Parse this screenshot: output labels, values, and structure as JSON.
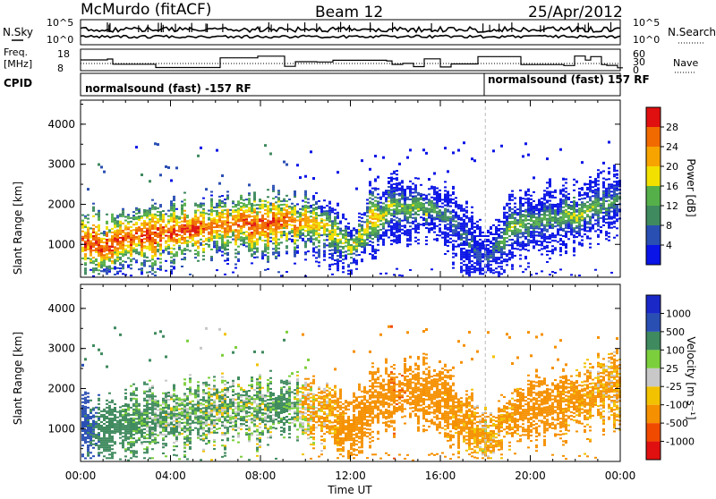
{
  "header": {
    "title": "McMurdo (fitACF)",
    "beam": "Beam 12",
    "date": "25/Apr/2012"
  },
  "noise_panel": {
    "left_label": "N.Sky",
    "right_label": "N.Search",
    "left_ticks": [
      "10^5",
      "10^0"
    ],
    "right_ticks": [
      "10^5",
      "10^0"
    ]
  },
  "freq_panel": {
    "left_label_1": "Freq.",
    "left_label_2": "[MHz]",
    "left_ticks": [
      "18",
      "8"
    ],
    "right_label": "Nave",
    "right_ticks": [
      "60",
      "30",
      "0"
    ]
  },
  "cpid": {
    "label": "CPID",
    "mode_1": "normalsound (fast) -157 RF",
    "mode_2": "normalsound (fast) 157 RF"
  },
  "colors": {
    "power": [
      "#0a14e6",
      "#2a4fb3",
      "#3f8a5e",
      "#56b04a",
      "#f2e000",
      "#f7a400",
      "#f06a00",
      "#e01010"
    ],
    "velocity": [
      "#e01010",
      "#f04a00",
      "#f59000",
      "#f2c200",
      "#c8c8c8",
      "#7ccf3c",
      "#3f8a5e",
      "#2a4fb3",
      "#1a28c8"
    ]
  },
  "chart_data": [
    {
      "type": "heatmap",
      "title": "Power",
      "ylabel": "Slant Range [km]",
      "xlabel": "Time UT",
      "y_ticks": [
        "1000",
        "2000",
        "3000",
        "4000"
      ],
      "x_ticks": [
        "00:00",
        "04:00",
        "08:00",
        "12:00",
        "16:00",
        "20:00",
        "00:00"
      ],
      "x_range_hours": [
        0,
        24
      ],
      "y_range_km": [
        180,
        4600
      ],
      "colorbar": {
        "label": "Power [dB]",
        "ticks": [
          "28",
          "24",
          "20",
          "16",
          "12",
          "8",
          "4"
        ]
      },
      "series": [
        {
          "t": [
            0,
            1,
            2,
            3,
            4,
            5,
            6,
            7,
            8,
            9,
            10,
            11,
            12,
            13,
            14,
            15,
            16,
            17,
            18,
            19,
            20,
            21,
            22,
            23,
            24
          ],
          "band_center_km": [
            1100,
            900,
            1100,
            1250,
            1300,
            1400,
            1450,
            1500,
            1450,
            1600,
            1500,
            1400,
            900,
            1700,
            1900,
            1850,
            1800,
            1200,
            600,
            1300,
            1500,
            1600,
            1700,
            1900,
            2100
          ],
          "peak_power_db": [
            30,
            30,
            28,
            30,
            28,
            30,
            26,
            28,
            30,
            28,
            24,
            20,
            18,
            22,
            14,
            16,
            12,
            8,
            6,
            16,
            14,
            12,
            18,
            14,
            10
          ]
        }
      ]
    },
    {
      "type": "heatmap",
      "title": "Velocity",
      "ylabel": "Slant Range [km]",
      "xlabel": "Time UT",
      "y_ticks": [
        "1000",
        "2000",
        "3000",
        "4000"
      ],
      "x_ticks": [
        "00:00",
        "04:00",
        "08:00",
        "12:00",
        "16:00",
        "20:00",
        "00:00"
      ],
      "x_range_hours": [
        0,
        24
      ],
      "y_range_km": [
        180,
        4600
      ],
      "colorbar": {
        "label": "Velocity [m s⁻¹]",
        "ticks": [
          "1000",
          "500",
          "100",
          "25",
          "-25",
          "-100",
          "-500",
          "-1000"
        ]
      },
      "series": [
        {
          "t": [
            0,
            1,
            2,
            3,
            4,
            5,
            6,
            7,
            8,
            9,
            10,
            11,
            12,
            13,
            14,
            15,
            16,
            17,
            18,
            19,
            20,
            21,
            22,
            23,
            24
          ],
          "band_center_km": [
            1100,
            900,
            1100,
            1250,
            1300,
            1400,
            1450,
            1500,
            1450,
            1600,
            1500,
            1400,
            900,
            1700,
            1900,
            1850,
            1800,
            1200,
            600,
            1300,
            1500,
            1600,
            1700,
            1900,
            2100
          ],
          "velocity_ms": [
            700,
            300,
            200,
            150,
            100,
            120,
            80,
            100,
            60,
            200,
            -80,
            -150,
            -300,
            -300,
            -400,
            -300,
            -250,
            -200,
            -100,
            -200,
            -300,
            -250,
            -200,
            -150,
            -100
          ]
        }
      ]
    }
  ]
}
